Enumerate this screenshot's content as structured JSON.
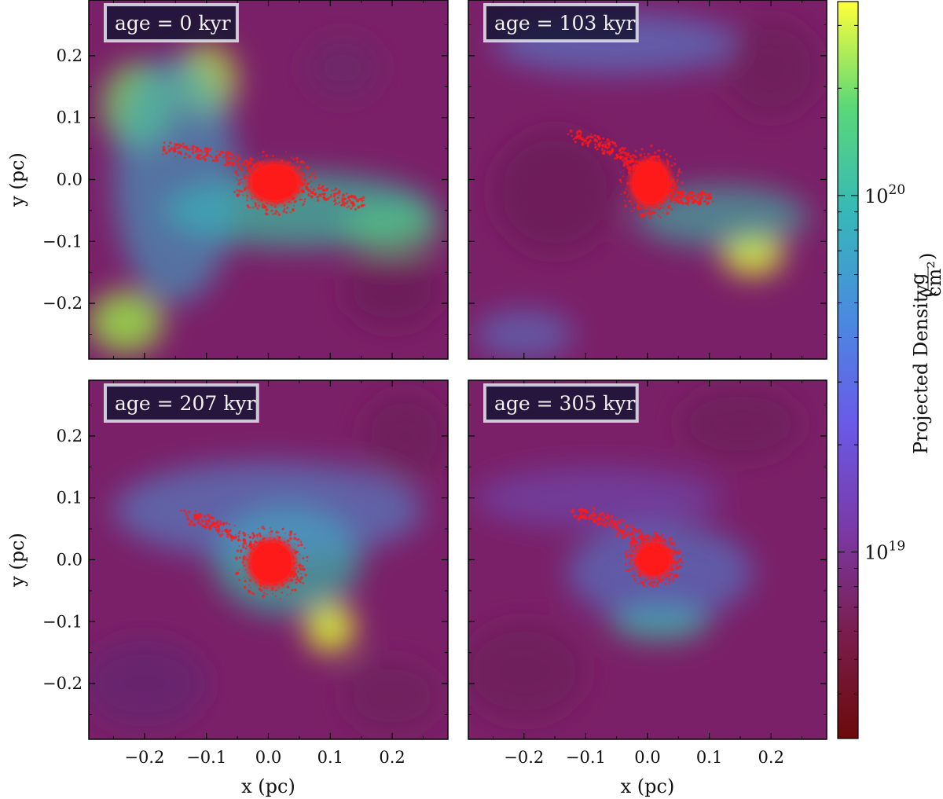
{
  "chart_data": {
    "type": "heatmap",
    "panels": [
      {
        "id": "p0",
        "age_label": "age = 0 kyr",
        "xlabel": "",
        "ylabel": "y (pc)",
        "show_xticklabels": false,
        "show_yticklabels": true,
        "blobs": [
          {
            "x": -0.21,
            "y": 0.12,
            "rx": 0.06,
            "ry": 0.07,
            "c": "#7ce05a",
            "o": 0.75
          },
          {
            "x": -0.1,
            "y": 0.16,
            "rx": 0.05,
            "ry": 0.06,
            "c": "#b0e040",
            "o": 0.8
          },
          {
            "x": -0.23,
            "y": -0.23,
            "rx": 0.06,
            "ry": 0.05,
            "c": "#9ae048",
            "o": 0.85
          },
          {
            "x": 0.05,
            "y": -0.05,
            "rx": 0.22,
            "ry": 0.06,
            "c": "#39c0a0",
            "o": 0.7
          },
          {
            "x": 0.2,
            "y": -0.08,
            "rx": 0.08,
            "ry": 0.04,
            "c": "#55d080",
            "o": 0.6
          },
          {
            "x": -0.15,
            "y": 0.0,
            "rx": 0.1,
            "ry": 0.2,
            "c": "#3aa8c8",
            "o": 0.6
          },
          {
            "x": 0.12,
            "y": 0.18,
            "rx": 0.06,
            "ry": 0.05,
            "c": "#6a2a6a",
            "o": 0.7
          },
          {
            "x": 0.2,
            "y": -0.18,
            "rx": 0.08,
            "ry": 0.06,
            "c": "#6a1f55",
            "o": 0.7
          }
        ],
        "core": {
          "x": 0.01,
          "y": -0.005,
          "rx": 0.045,
          "ry": 0.035
        },
        "stream": [
          [
            -0.17,
            0.05
          ],
          [
            -0.08,
            0.04
          ],
          [
            0.0,
            0.01
          ],
          [
            0.08,
            -0.02
          ],
          [
            0.15,
            -0.04
          ]
        ]
      },
      {
        "id": "p1",
        "age_label": "age = 103 kyr",
        "xlabel": "",
        "ylabel": "",
        "show_xticklabels": false,
        "show_yticklabels": false,
        "blobs": [
          {
            "x": 0.17,
            "y": -0.12,
            "rx": 0.05,
            "ry": 0.035,
            "c": "#d8e83a",
            "o": 0.95
          },
          {
            "x": 0.12,
            "y": -0.06,
            "rx": 0.14,
            "ry": 0.05,
            "c": "#38c0a8",
            "o": 0.6
          },
          {
            "x": -0.05,
            "y": 0.22,
            "rx": 0.2,
            "ry": 0.05,
            "c": "#4f8cdc",
            "o": 0.55
          },
          {
            "x": -0.15,
            "y": -0.02,
            "rx": 0.1,
            "ry": 0.1,
            "c": "#6a1f55",
            "o": 0.7
          },
          {
            "x": 0.2,
            "y": 0.18,
            "rx": 0.08,
            "ry": 0.08,
            "c": "#6a1f55",
            "o": 0.6
          },
          {
            "x": -0.2,
            "y": -0.25,
            "rx": 0.08,
            "ry": 0.04,
            "c": "#4f8cdc",
            "o": 0.5
          }
        ],
        "core": {
          "x": 0.005,
          "y": -0.005,
          "rx": 0.035,
          "ry": 0.04
        },
        "stream": [
          [
            -0.12,
            0.07
          ],
          [
            -0.06,
            0.05
          ],
          [
            0.0,
            0.01
          ],
          [
            0.05,
            -0.03
          ],
          [
            0.1,
            -0.03
          ]
        ]
      },
      {
        "id": "p2",
        "age_label": "age = 207 kyr",
        "xlabel": "x (pc)",
        "ylabel": "y (pc)",
        "show_xticklabels": true,
        "show_yticklabels": true,
        "blobs": [
          {
            "x": 0.1,
            "y": -0.11,
            "rx": 0.04,
            "ry": 0.04,
            "c": "#d8e83a",
            "o": 0.95
          },
          {
            "x": 0.03,
            "y": 0.0,
            "rx": 0.12,
            "ry": 0.09,
            "c": "#38c0a8",
            "o": 0.65
          },
          {
            "x": 0.0,
            "y": 0.08,
            "rx": 0.25,
            "ry": 0.08,
            "c": "#4a98d8",
            "o": 0.55
          },
          {
            "x": -0.2,
            "y": -0.2,
            "rx": 0.1,
            "ry": 0.07,
            "c": "#5a2a70",
            "o": 0.6
          },
          {
            "x": 0.22,
            "y": 0.2,
            "rx": 0.07,
            "ry": 0.07,
            "c": "#6a1f55",
            "o": 0.6
          },
          {
            "x": 0.2,
            "y": -0.22,
            "rx": 0.08,
            "ry": 0.06,
            "c": "#6a1f55",
            "o": 0.5
          }
        ],
        "core": {
          "x": 0.005,
          "y": -0.005,
          "rx": 0.04,
          "ry": 0.04
        },
        "stream": [
          [
            -0.13,
            0.07
          ],
          [
            -0.07,
            0.05
          ],
          [
            0.0,
            0.01
          ],
          [
            0.05,
            -0.03
          ]
        ]
      },
      {
        "id": "p3",
        "age_label": "age = 305 kyr",
        "xlabel": "x (pc)",
        "ylabel": "",
        "show_xticklabels": true,
        "show_yticklabels": false,
        "blobs": [
          {
            "x": 0.02,
            "y": -0.1,
            "rx": 0.08,
            "ry": 0.03,
            "c": "#3cc4a0",
            "o": 0.75
          },
          {
            "x": 0.02,
            "y": -0.02,
            "rx": 0.15,
            "ry": 0.08,
            "c": "#4a88d8",
            "o": 0.55
          },
          {
            "x": -0.08,
            "y": 0.1,
            "rx": 0.2,
            "ry": 0.05,
            "c": "#6a58c8",
            "o": 0.5
          },
          {
            "x": -0.2,
            "y": -0.18,
            "rx": 0.1,
            "ry": 0.08,
            "c": "#6a1f55",
            "o": 0.6
          },
          {
            "x": 0.15,
            "y": 0.22,
            "rx": 0.1,
            "ry": 0.06,
            "c": "#6a1f55",
            "o": 0.6
          }
        ],
        "core": {
          "x": 0.01,
          "y": 0.0,
          "rx": 0.032,
          "ry": 0.03
        },
        "stream": [
          [
            -0.12,
            0.08
          ],
          [
            -0.06,
            0.06
          ],
          [
            0.0,
            0.03
          ],
          [
            0.04,
            0.0
          ]
        ]
      }
    ],
    "xlim": [
      -0.29,
      0.29
    ],
    "ylim": [
      -0.29,
      0.29
    ],
    "xticks": [
      -0.2,
      -0.1,
      0.0,
      0.1,
      0.2
    ],
    "xticklabels": [
      "−0.2",
      "−0.1",
      "0.0",
      "0.1",
      "0.2"
    ],
    "yticks": [
      0.2,
      0.1,
      0.0,
      -0.1,
      -0.2
    ],
    "yticklabels": [
      "0.2",
      "0.1",
      "0.0",
      "−0.1",
      "−0.2"
    ],
    "colorbar": {
      "label": "Projected Density",
      "unit_num": "g",
      "unit_den": "cm²",
      "scale": "log",
      "range": [
        3e+18,
        3.5e+20
      ],
      "ticks": [
        {
          "value": 1e+20,
          "base": "10",
          "exp": "20"
        },
        {
          "value": 1e+19,
          "base": "10",
          "exp": "19"
        }
      ],
      "colormap": [
        "#6b0a0a",
        "#7a1d4d",
        "#7a3aa8",
        "#6a5ae8",
        "#4a8ae0",
        "#36b8b8",
        "#5ad878",
        "#ffff3a"
      ]
    },
    "overlay": {
      "name": "star particles",
      "color": "#ff1a1a"
    }
  },
  "colors": {
    "background": "#7a2068",
    "star_particles": "#ff1a1a"
  }
}
